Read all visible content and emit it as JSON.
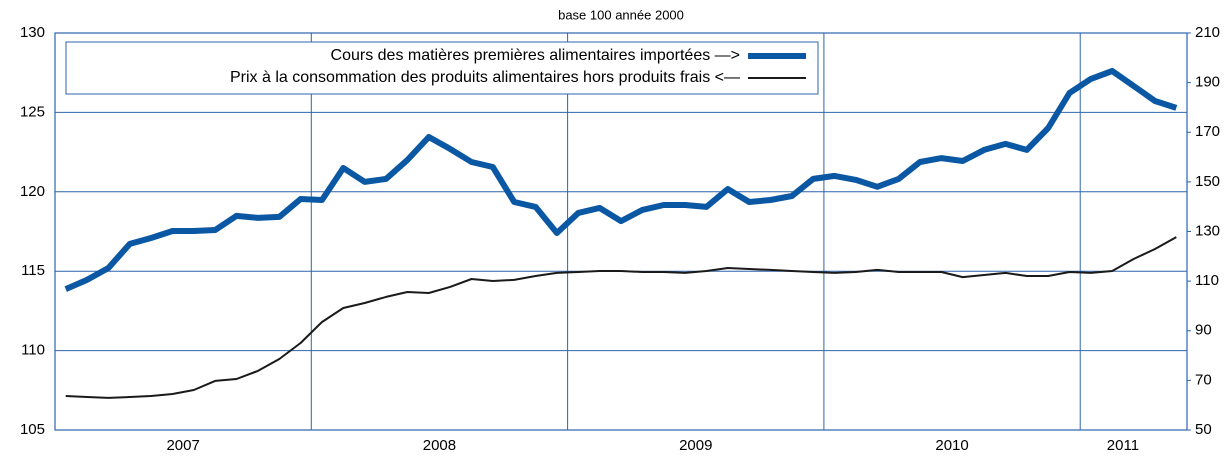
{
  "chart_data": {
    "type": "line",
    "title": "base 100 année 2000",
    "categories": [
      null,
      null,
      null,
      null,
      null,
      null,
      "2007",
      null,
      null,
      null,
      null,
      null,
      null,
      null,
      null,
      null,
      null,
      null,
      "2008",
      null,
      null,
      null,
      null,
      null,
      null,
      null,
      null,
      null,
      null,
      null,
      "2009",
      null,
      null,
      null,
      null,
      null,
      null,
      null,
      null,
      null,
      null,
      null,
      "2010",
      null,
      null,
      null,
      null,
      null,
      null,
      null,
      "2011",
      null,
      null
    ],
    "series": [
      {
        "name": "Cours des matières premières alimentaires importées —>",
        "color": "#0a57a4",
        "axis": "y2",
        "values": [
          106.8,
          110.5,
          115.3,
          125,
          127.4,
          130.2,
          130.2,
          130.6,
          136.3,
          135.5,
          135.9,
          143.1,
          142.7,
          155.6,
          150,
          151.2,
          158.8,
          168.1,
          163.3,
          158,
          156,
          141.9,
          139.9,
          129.4,
          137.5,
          139.5,
          134.2,
          138.7,
          140.7,
          140.7,
          139.9,
          147.1,
          141.9,
          142.7,
          144.3,
          151.2,
          152.4,
          150.8,
          148,
          151.2,
          158,
          159.6,
          158.4,
          162.9,
          165.3,
          162.9,
          171.7,
          185.8,
          191.5,
          194.7,
          188.7,
          182.6,
          179.8
        ]
      },
      {
        "name": "Prix à la consommation des produits alimentaires hors produits frais <—",
        "color": "#1a1a1a",
        "axis": "y",
        "values": [
          107.14,
          107.08,
          107.02,
          107.08,
          107.14,
          107.27,
          107.52,
          108.09,
          108.21,
          108.72,
          109.47,
          110.48,
          111.8,
          112.68,
          113,
          113.38,
          113.69,
          113.63,
          114.01,
          114.51,
          114.38,
          114.45,
          114.7,
          114.89,
          114.95,
          115.01,
          115.01,
          114.95,
          114.95,
          114.89,
          115.01,
          115.2,
          115.14,
          115.08,
          115.01,
          114.95,
          114.89,
          114.95,
          115.08,
          114.95,
          114.95,
          114.95,
          114.63,
          114.76,
          114.89,
          114.7,
          114.7,
          114.95,
          114.89,
          115.01,
          115.77,
          116.4,
          117.15
        ]
      }
    ],
    "ylim": [
      105,
      130
    ],
    "yticks": [
      105,
      110,
      115,
      120,
      125,
      130
    ],
    "y2lim": [
      50,
      210
    ],
    "y2ticks": [
      50,
      70,
      90,
      110,
      130,
      150,
      170,
      190,
      210
    ],
    "grid": true
  }
}
